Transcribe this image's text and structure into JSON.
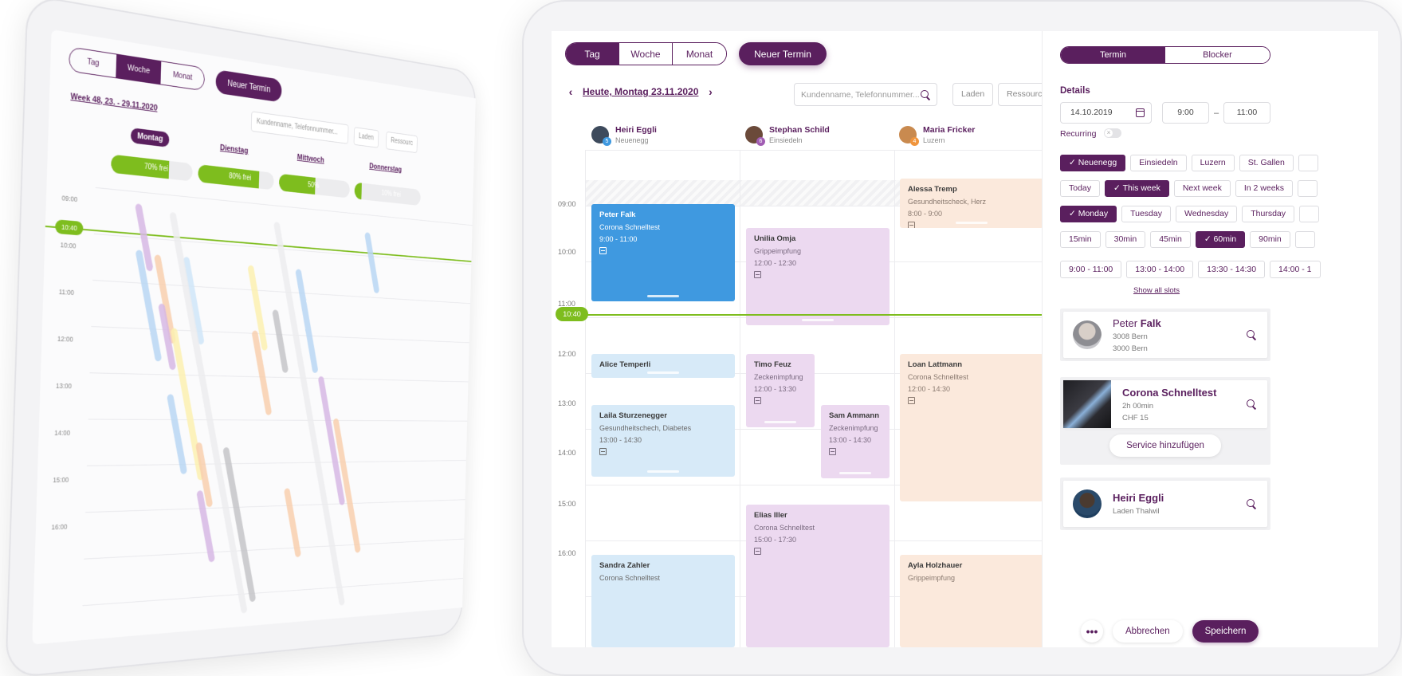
{
  "back_view": {
    "views": [
      "Tag",
      "Woche",
      "Monat"
    ],
    "active_view": "Woche",
    "new_button": "Neuer Termin",
    "week_title": "Week 48, 23. - 29.11.2020",
    "search_placeholder": "Kundenname, Telefonnummer...",
    "filters": [
      "Laden",
      "Ressourc"
    ],
    "days": [
      {
        "label": "Montag",
        "active": true,
        "free_pct": 70,
        "free_label": "70% frei"
      },
      {
        "label": "Dienstag",
        "active": false,
        "free_pct": 80,
        "free_label": "80% frei"
      },
      {
        "label": "Mittwoch",
        "active": false,
        "free_pct": 50,
        "free_label": "50%"
      },
      {
        "label": "Donnerstag",
        "active": false,
        "free_pct": 10,
        "free_label": "10% frei"
      }
    ],
    "times": [
      "09:00",
      "10:00",
      "11:00",
      "12:00",
      "13:00",
      "14:00",
      "15:00",
      "16:00"
    ],
    "now_label": "10:40"
  },
  "front": {
    "views": [
      "Tag",
      "Woche",
      "Monat"
    ],
    "active_view": "Tag",
    "new_button": "Neuer Termin",
    "date_title": "Heute, Montag 23.11.2020",
    "search_placeholder": "Kundenname, Telefonnummer...",
    "filters": [
      "Laden",
      "Ressource"
    ],
    "resources": [
      {
        "name": "Heiri Eggli",
        "location": "Neuenegg",
        "count": "5",
        "color": "#3f99e0"
      },
      {
        "name": "Stephan Schild",
        "location": "Einsiedeln",
        "count": "6",
        "color": "#a15db3"
      },
      {
        "name": "Maria Fricker",
        "location": "Luzern",
        "count": "4",
        "color": "#f0953d"
      }
    ],
    "times": [
      "09:00",
      "10:00",
      "11:00",
      "12:00",
      "13:00",
      "14:00",
      "15:00",
      "16:00"
    ],
    "now_label": "10:40",
    "appointments": [
      {
        "name": "Peter Falk",
        "service": "Corona Schnelltest",
        "time": "9:00 - 11:00",
        "style": "blue"
      },
      {
        "name": "Unilia Omja",
        "service": "Grippeimpfung",
        "time": "12:00 - 12:30",
        "style": "lilac"
      },
      {
        "name": "Alessa Tremp",
        "service": "Gesundheitscheck, Herz",
        "time": "8:00 - 9:00",
        "style": "peach"
      },
      {
        "name": "Alice Temperli",
        "service": "",
        "time": "",
        "style": "lblue"
      },
      {
        "name": "Timo Feuz",
        "service": "Zeckenimpfung",
        "time": "12:00 - 13:30",
        "style": "lilac"
      },
      {
        "name": "Loan Lattmann",
        "service": "Corona Schnelltest",
        "time": "12:00 - 14:30",
        "style": "peach"
      },
      {
        "name": "Laila Sturzenegger",
        "service": "Gesundheitschech, Diabetes",
        "time": "13:00 - 14:30",
        "style": "lblue"
      },
      {
        "name": "Sam Ammann",
        "service": "Zeckenimpfung",
        "time": "13:00 - 14:30",
        "style": "lilac"
      },
      {
        "name": "Elias Iller",
        "service": "Corona Schnelltest",
        "time": "15:00 - 17:30",
        "style": "lilac"
      },
      {
        "name": "Sandra Zahler",
        "service": "Corona Schnelltest",
        "time": "",
        "style": "lblue"
      },
      {
        "name": "Ayla Holzhauer",
        "service": "Grippeimpfung",
        "time": "",
        "style": "peach"
      }
    ]
  },
  "panel": {
    "tabs": [
      "Termin",
      "Blocker"
    ],
    "active_tab": "Termin",
    "details_label": "Details",
    "date": "14.10.2019",
    "time_from": "9:00",
    "time_dash": "–",
    "time_to": "11:00",
    "recurring_label": "Recurring",
    "locations": [
      {
        "label": "Neuenegg",
        "on": true
      },
      {
        "label": "Einsiedeln",
        "on": false
      },
      {
        "label": "Luzern",
        "on": false
      },
      {
        "label": "St. Gallen",
        "on": false
      }
    ],
    "periods": [
      {
        "label": "Today",
        "on": false
      },
      {
        "label": "This week",
        "on": true
      },
      {
        "label": "Next week",
        "on": false
      },
      {
        "label": "In 2 weeks",
        "on": false
      }
    ],
    "weekdays": [
      {
        "label": "Monday",
        "on": true
      },
      {
        "label": "Tuesday",
        "on": false
      },
      {
        "label": "Wednesday",
        "on": false
      },
      {
        "label": "Thursday",
        "on": false
      }
    ],
    "durations": [
      {
        "label": "15min",
        "on": false
      },
      {
        "label": "30min",
        "on": false
      },
      {
        "label": "45min",
        "on": false
      },
      {
        "label": "60min",
        "on": true
      },
      {
        "label": "90min",
        "on": false
      }
    ],
    "slots": [
      "9:00 - 11:00",
      "13:00 - 14:00",
      "13:30 - 14:30",
      "14:00 - 1"
    ],
    "show_all_slots": "Show all slots",
    "customer": {
      "first": "Peter",
      "last": "Falk",
      "line1": "3008 Bern",
      "line2": "3000 Bern"
    },
    "service": {
      "name": "Corona Schnelltest",
      "duration": "2h 00min",
      "price": "CHF 15",
      "add_label": "Service hinzufügen"
    },
    "staff": {
      "name": "Heiri Eggli",
      "location": "Laden Thalwil"
    },
    "more_label": "•••",
    "cancel_label": "Abbrechen",
    "save_label": "Speichern"
  },
  "colors": {
    "brand": "#5a1f5e",
    "now": "#7ebd1e",
    "appt_blue": "#3f99e0"
  }
}
